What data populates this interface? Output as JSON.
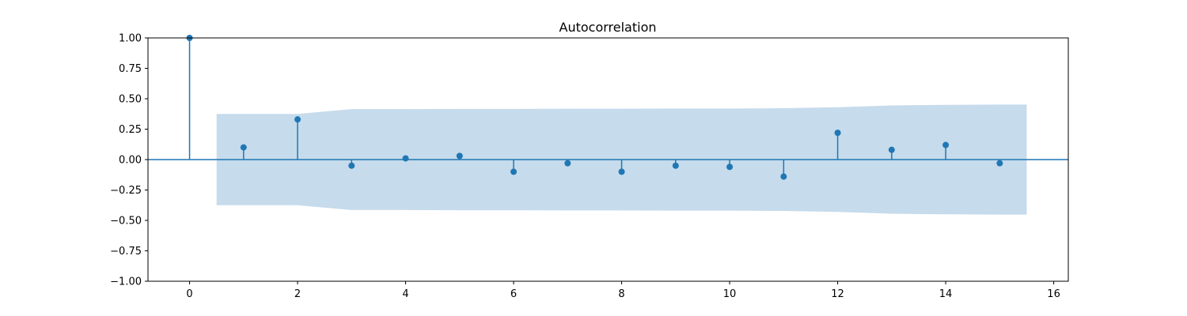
{
  "chart_data": {
    "type": "stem",
    "title": "Autocorrelation",
    "xlabel": "",
    "ylabel": "",
    "xlim": [
      -0.77,
      16.27
    ],
    "ylim": [
      -1.0,
      1.0
    ],
    "x_ticks": [
      0,
      2,
      4,
      6,
      8,
      10,
      12,
      14,
      16
    ],
    "x_tick_labels": [
      "0",
      "2",
      "4",
      "6",
      "8",
      "10",
      "12",
      "14",
      "16"
    ],
    "y_ticks": [
      -1.0,
      -0.75,
      -0.5,
      -0.25,
      0.0,
      0.25,
      0.5,
      0.75,
      1.0
    ],
    "y_tick_labels": [
      "−1.00",
      "−0.75",
      "−0.50",
      "−0.25",
      "0.00",
      "0.25",
      "0.50",
      "0.75",
      "1.00"
    ],
    "grid": false,
    "series": [
      {
        "lags": [
          0,
          1,
          2,
          3,
          4,
          5,
          6,
          7,
          8,
          9,
          10,
          11,
          12,
          13,
          14,
          15
        ],
        "values": [
          1.0,
          0.1,
          0.33,
          -0.05,
          0.01,
          0.03,
          -0.1,
          -0.03,
          -0.1,
          -0.05,
          -0.06,
          -0.14,
          0.22,
          0.08,
          0.12,
          -0.03
        ]
      }
    ],
    "confidence_band": {
      "x": [
        0.5,
        1,
        2,
        3,
        4,
        5,
        6,
        7,
        8,
        9,
        10,
        11,
        12,
        13,
        14,
        15,
        15.5
      ],
      "upper": [
        0.375,
        0.375,
        0.375,
        0.415,
        0.415,
        0.416,
        0.416,
        0.418,
        0.418,
        0.42,
        0.42,
        0.422,
        0.43,
        0.445,
        0.45,
        0.452,
        0.452
      ],
      "lower": [
        -0.375,
        -0.375,
        -0.375,
        -0.415,
        -0.415,
        -0.416,
        -0.416,
        -0.418,
        -0.418,
        -0.42,
        -0.42,
        -0.422,
        -0.43,
        -0.445,
        -0.45,
        -0.452,
        -0.452
      ]
    },
    "colors": {
      "stem": "#1f77b4",
      "band": "#c6dbec",
      "axis": "#000000"
    }
  }
}
